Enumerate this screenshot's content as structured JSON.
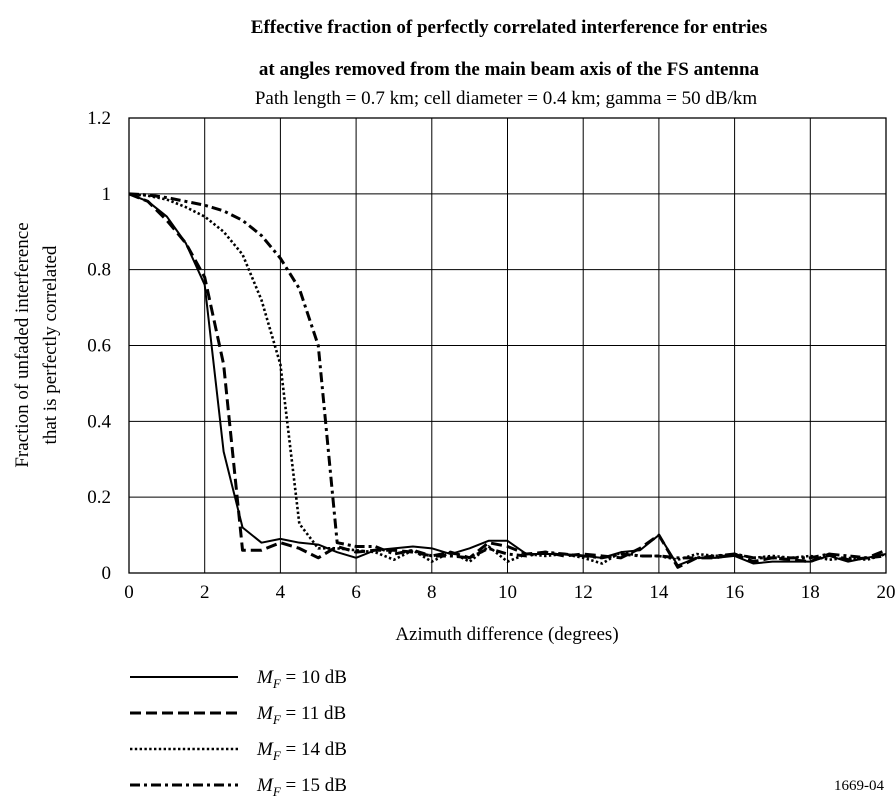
{
  "chart_data": {
    "type": "line",
    "title_line1": "Effective fraction of perfectly correlated interference for entries",
    "title_line2": "at angles removed from the main beam axis of the FS antenna",
    "subtitle": "Path length = 0.7 km; cell diameter = 0.4 km; gamma = 50 dB/km",
    "xlabel": "Azimuth difference (degrees)",
    "ylabel_line1": "Fraction of unfaded interference",
    "ylabel_line2": "that is perfectly correlated",
    "xlim": [
      0,
      20
    ],
    "ylim": [
      0,
      1.2
    ],
    "xticks": [
      "0",
      "2",
      "4",
      "6",
      "8",
      "10",
      "12",
      "14",
      "16",
      "18",
      "20"
    ],
    "yticks": [
      "0",
      "0.2",
      "0.4",
      "0.6",
      "0.8",
      "1",
      "1.2"
    ],
    "grid": true,
    "legend_position": "below",
    "figure_code": "1669-04",
    "x": [
      0,
      0.5,
      1,
      1.5,
      2,
      2.5,
      3,
      3.5,
      4,
      4.5,
      5,
      5.5,
      6,
      6.5,
      7,
      7.5,
      8,
      8.5,
      9,
      9.5,
      10,
      10.5,
      11,
      11.5,
      12,
      12.5,
      13,
      13.5,
      14,
      14.5,
      15,
      15.5,
      16,
      16.5,
      17,
      17.5,
      18,
      18.5,
      19,
      19.5,
      20
    ],
    "series": [
      {
        "legend_main": "M",
        "legend_sub": "F",
        "legend_rest": " = 10 dB",
        "dash": "solid",
        "values": [
          1.0,
          0.98,
          0.94,
          0.87,
          0.76,
          0.32,
          0.12,
          0.08,
          0.09,
          0.08,
          0.075,
          0.055,
          0.04,
          0.06,
          0.065,
          0.07,
          0.065,
          0.05,
          0.065,
          0.085,
          0.085,
          0.05,
          0.05,
          0.05,
          0.045,
          0.04,
          0.055,
          0.06,
          0.1,
          0.02,
          0.04,
          0.04,
          0.045,
          0.025,
          0.03,
          0.03,
          0.03,
          0.045,
          0.03,
          0.04,
          0.05
        ]
      },
      {
        "legend_main": "M",
        "legend_sub": "F",
        "legend_rest": " = 11 dB",
        "dash": "dashed",
        "values": [
          1.0,
          0.98,
          0.93,
          0.87,
          0.78,
          0.55,
          0.06,
          0.06,
          0.08,
          0.065,
          0.04,
          0.07,
          0.055,
          0.06,
          0.06,
          0.055,
          0.045,
          0.055,
          0.04,
          0.08,
          0.07,
          0.05,
          0.055,
          0.045,
          0.05,
          0.045,
          0.04,
          0.065,
          0.1,
          0.015,
          0.04,
          0.04,
          0.05,
          0.03,
          0.04,
          0.035,
          0.03,
          0.05,
          0.035,
          0.04,
          0.06
        ]
      },
      {
        "legend_main": "M",
        "legend_sub": "F",
        "legend_rest": " = 14 dB",
        "dash": "dotted",
        "values": [
          1.0,
          0.995,
          0.985,
          0.965,
          0.94,
          0.9,
          0.84,
          0.72,
          0.55,
          0.13,
          0.065,
          0.065,
          0.06,
          0.055,
          0.035,
          0.06,
          0.03,
          0.055,
          0.03,
          0.07,
          0.03,
          0.05,
          0.045,
          0.05,
          0.04,
          0.025,
          0.055,
          0.045,
          0.045,
          0.035,
          0.05,
          0.045,
          0.05,
          0.04,
          0.045,
          0.04,
          0.045,
          0.035,
          0.04,
          0.035,
          0.05
        ]
      },
      {
        "legend_main": "M",
        "legend_sub": "F",
        "legend_rest": " = 15 dB",
        "dash": "dashdot",
        "values": [
          1.0,
          0.997,
          0.99,
          0.98,
          0.97,
          0.955,
          0.93,
          0.89,
          0.83,
          0.75,
          0.6,
          0.08,
          0.07,
          0.07,
          0.05,
          0.06,
          0.045,
          0.045,
          0.04,
          0.065,
          0.05,
          0.045,
          0.055,
          0.05,
          0.045,
          0.04,
          0.05,
          0.045,
          0.045,
          0.04,
          0.04,
          0.045,
          0.05,
          0.04,
          0.04,
          0.04,
          0.04,
          0.05,
          0.045,
          0.04,
          0.045
        ]
      }
    ]
  }
}
